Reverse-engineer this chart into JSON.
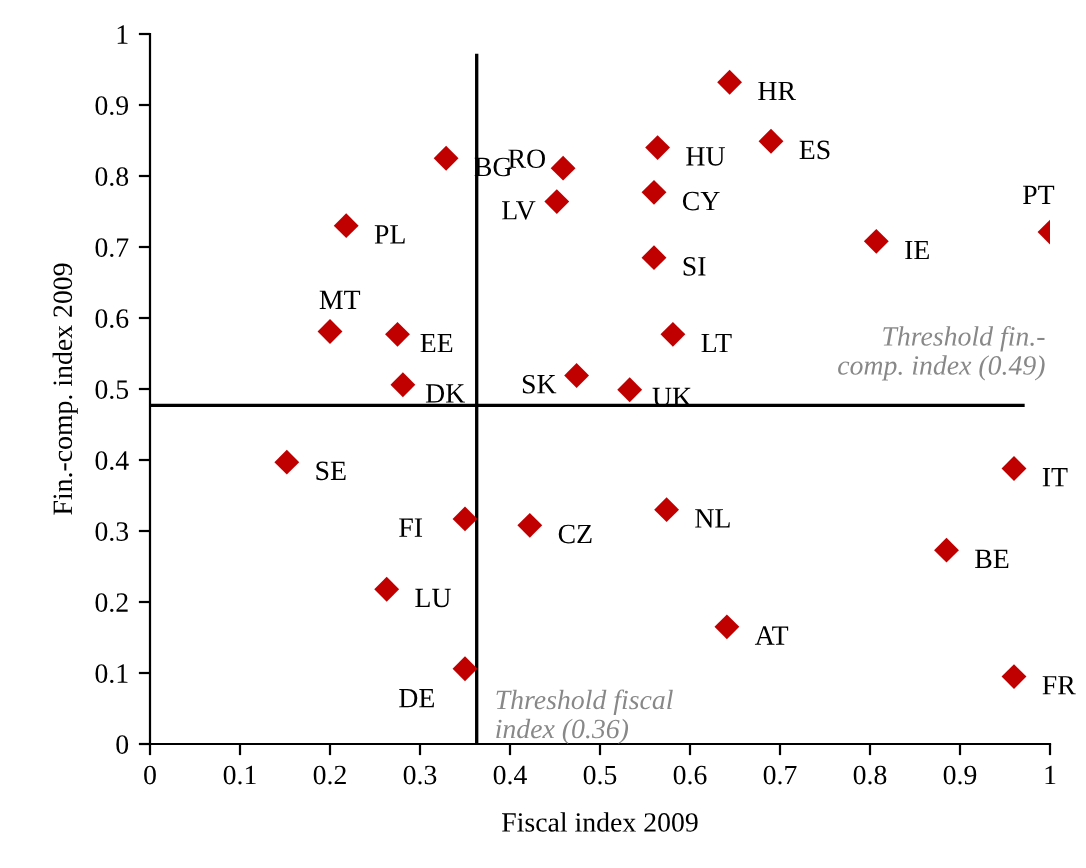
{
  "chart_data": {
    "type": "scatter",
    "xlabel": "Fiscal index 2009",
    "ylabel": "Fin.-comp. index 2009",
    "x": [
      0.644,
      0.329,
      0.459,
      0.564,
      0.69,
      0.56,
      0.452,
      0.218,
      0.56,
      0.807,
      1.0,
      0.2,
      0.275,
      0.581,
      0.281,
      0.474,
      0.533,
      0.152,
      0.96,
      0.35,
      0.422,
      0.574,
      0.885,
      0.263,
      0.641,
      0.35,
      0.96
    ],
    "series": [
      {
        "color": "#c00000",
        "values": [
          0.932,
          0.825,
          0.811,
          0.84,
          0.849,
          0.777,
          0.764,
          0.73,
          0.685,
          0.708,
          0.721,
          0.581,
          0.577,
          0.577,
          0.506,
          0.519,
          0.499,
          0.397,
          0.388,
          0.317,
          0.308,
          0.33,
          0.273,
          0.218,
          0.165,
          0.106,
          0.095
        ]
      }
    ],
    "annotations": [
      {
        "text": "HR",
        "x": 0.644,
        "y": 0.932
      },
      {
        "text": "BG",
        "x": 0.329,
        "y": 0.825
      },
      {
        "text": "RO",
        "x": 0.459,
        "y": 0.811
      },
      {
        "text": "HU",
        "x": 0.564,
        "y": 0.84
      },
      {
        "text": "ES",
        "x": 0.69,
        "y": 0.849
      },
      {
        "text": "CY",
        "x": 0.56,
        "y": 0.777
      },
      {
        "text": "LV",
        "x": 0.452,
        "y": 0.764
      },
      {
        "text": "PL",
        "x": 0.218,
        "y": 0.73
      },
      {
        "text": "SI",
        "x": 0.56,
        "y": 0.685
      },
      {
        "text": "IE",
        "x": 0.807,
        "y": 0.708
      },
      {
        "text": "PT",
        "x": 1.0,
        "y": 0.721
      },
      {
        "text": "MT",
        "x": 0.2,
        "y": 0.581
      },
      {
        "text": "EE",
        "x": 0.275,
        "y": 0.577
      },
      {
        "text": "LT",
        "x": 0.581,
        "y": 0.577
      },
      {
        "text": "DK",
        "x": 0.281,
        "y": 0.506
      },
      {
        "text": "SK",
        "x": 0.474,
        "y": 0.519
      },
      {
        "text": "UK",
        "x": 0.533,
        "y": 0.499
      },
      {
        "text": "SE",
        "x": 0.152,
        "y": 0.397
      },
      {
        "text": "IT",
        "x": 0.96,
        "y": 0.388
      },
      {
        "text": "FI",
        "x": 0.35,
        "y": 0.317
      },
      {
        "text": "CZ",
        "x": 0.422,
        "y": 0.308
      },
      {
        "text": "NL",
        "x": 0.574,
        "y": 0.33
      },
      {
        "text": "BE",
        "x": 0.885,
        "y": 0.273
      },
      {
        "text": "LU",
        "x": 0.263,
        "y": 0.218
      },
      {
        "text": "AT",
        "x": 0.641,
        "y": 0.165
      },
      {
        "text": "DE",
        "x": 0.35,
        "y": 0.106
      },
      {
        "text": "FR",
        "x": 0.96,
        "y": 0.095
      }
    ],
    "ref_lines": [
      {
        "axis": "x",
        "value": 0.363,
        "label": "Threshold fiscal\nindex (0.36)",
        "color": "#000000"
      },
      {
        "axis": "y",
        "value": 0.477,
        "label": "Threshold fin.-\ncomp. index (0.49)",
        "color": "#000000"
      }
    ],
    "xlim": [
      0,
      1
    ],
    "ylim": [
      0,
      1
    ],
    "xticks": [
      0,
      0.1,
      0.2,
      0.3,
      0.4,
      0.5,
      0.6,
      0.7,
      0.8,
      0.9,
      1
    ],
    "yticks": [
      0,
      0.1,
      0.2,
      0.3,
      0.4,
      0.5,
      0.6,
      0.7,
      0.8,
      0.9,
      1
    ],
    "marker": "diamond",
    "grid": false,
    "legend": false
  }
}
